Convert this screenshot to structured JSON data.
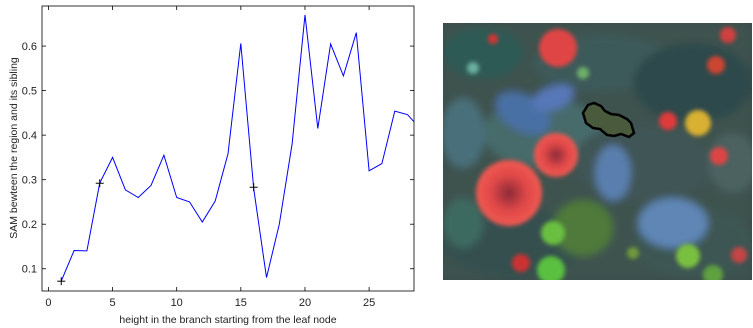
{
  "chart_data": {
    "type": "line",
    "title": "",
    "xlabel": "height in the branch starting from the leaf node",
    "ylabel": "SAM bewteen the region and its sibling",
    "xlim": [
      -0.5,
      28.5
    ],
    "ylim": [
      0.05,
      0.69
    ],
    "xticks": [
      0,
      5,
      10,
      15,
      20,
      25
    ],
    "yticks": [
      0.1,
      0.2,
      0.3,
      0.4,
      0.5,
      0.6
    ],
    "grid": false,
    "series": [
      {
        "color": "#0000ff",
        "x": [
          1,
          2,
          3,
          4,
          5,
          6,
          7,
          8,
          9,
          10,
          11,
          12,
          13,
          14,
          15,
          16,
          17,
          18,
          19,
          20,
          21,
          22,
          23,
          24,
          25,
          26,
          27,
          28,
          28.5
        ],
        "y": [
          0.072,
          0.141,
          0.14,
          0.292,
          0.35,
          0.277,
          0.26,
          0.287,
          0.355,
          0.26,
          0.25,
          0.205,
          0.252,
          0.358,
          0.606,
          0.28,
          0.08,
          0.2,
          0.38,
          0.67,
          0.415,
          0.605,
          0.533,
          0.63,
          0.32,
          0.336,
          0.454,
          0.446,
          0.43
        ]
      }
    ],
    "markers": [
      {
        "x": 1,
        "y": 0.072,
        "symbol": "+"
      },
      {
        "x": 4,
        "y": 0.292,
        "symbol": "+"
      },
      {
        "x": 16,
        "y": 0.283,
        "symbol": "+"
      }
    ]
  },
  "image": {
    "icon": "fluorescence-microscopy-image",
    "outline_color": "#000000"
  }
}
